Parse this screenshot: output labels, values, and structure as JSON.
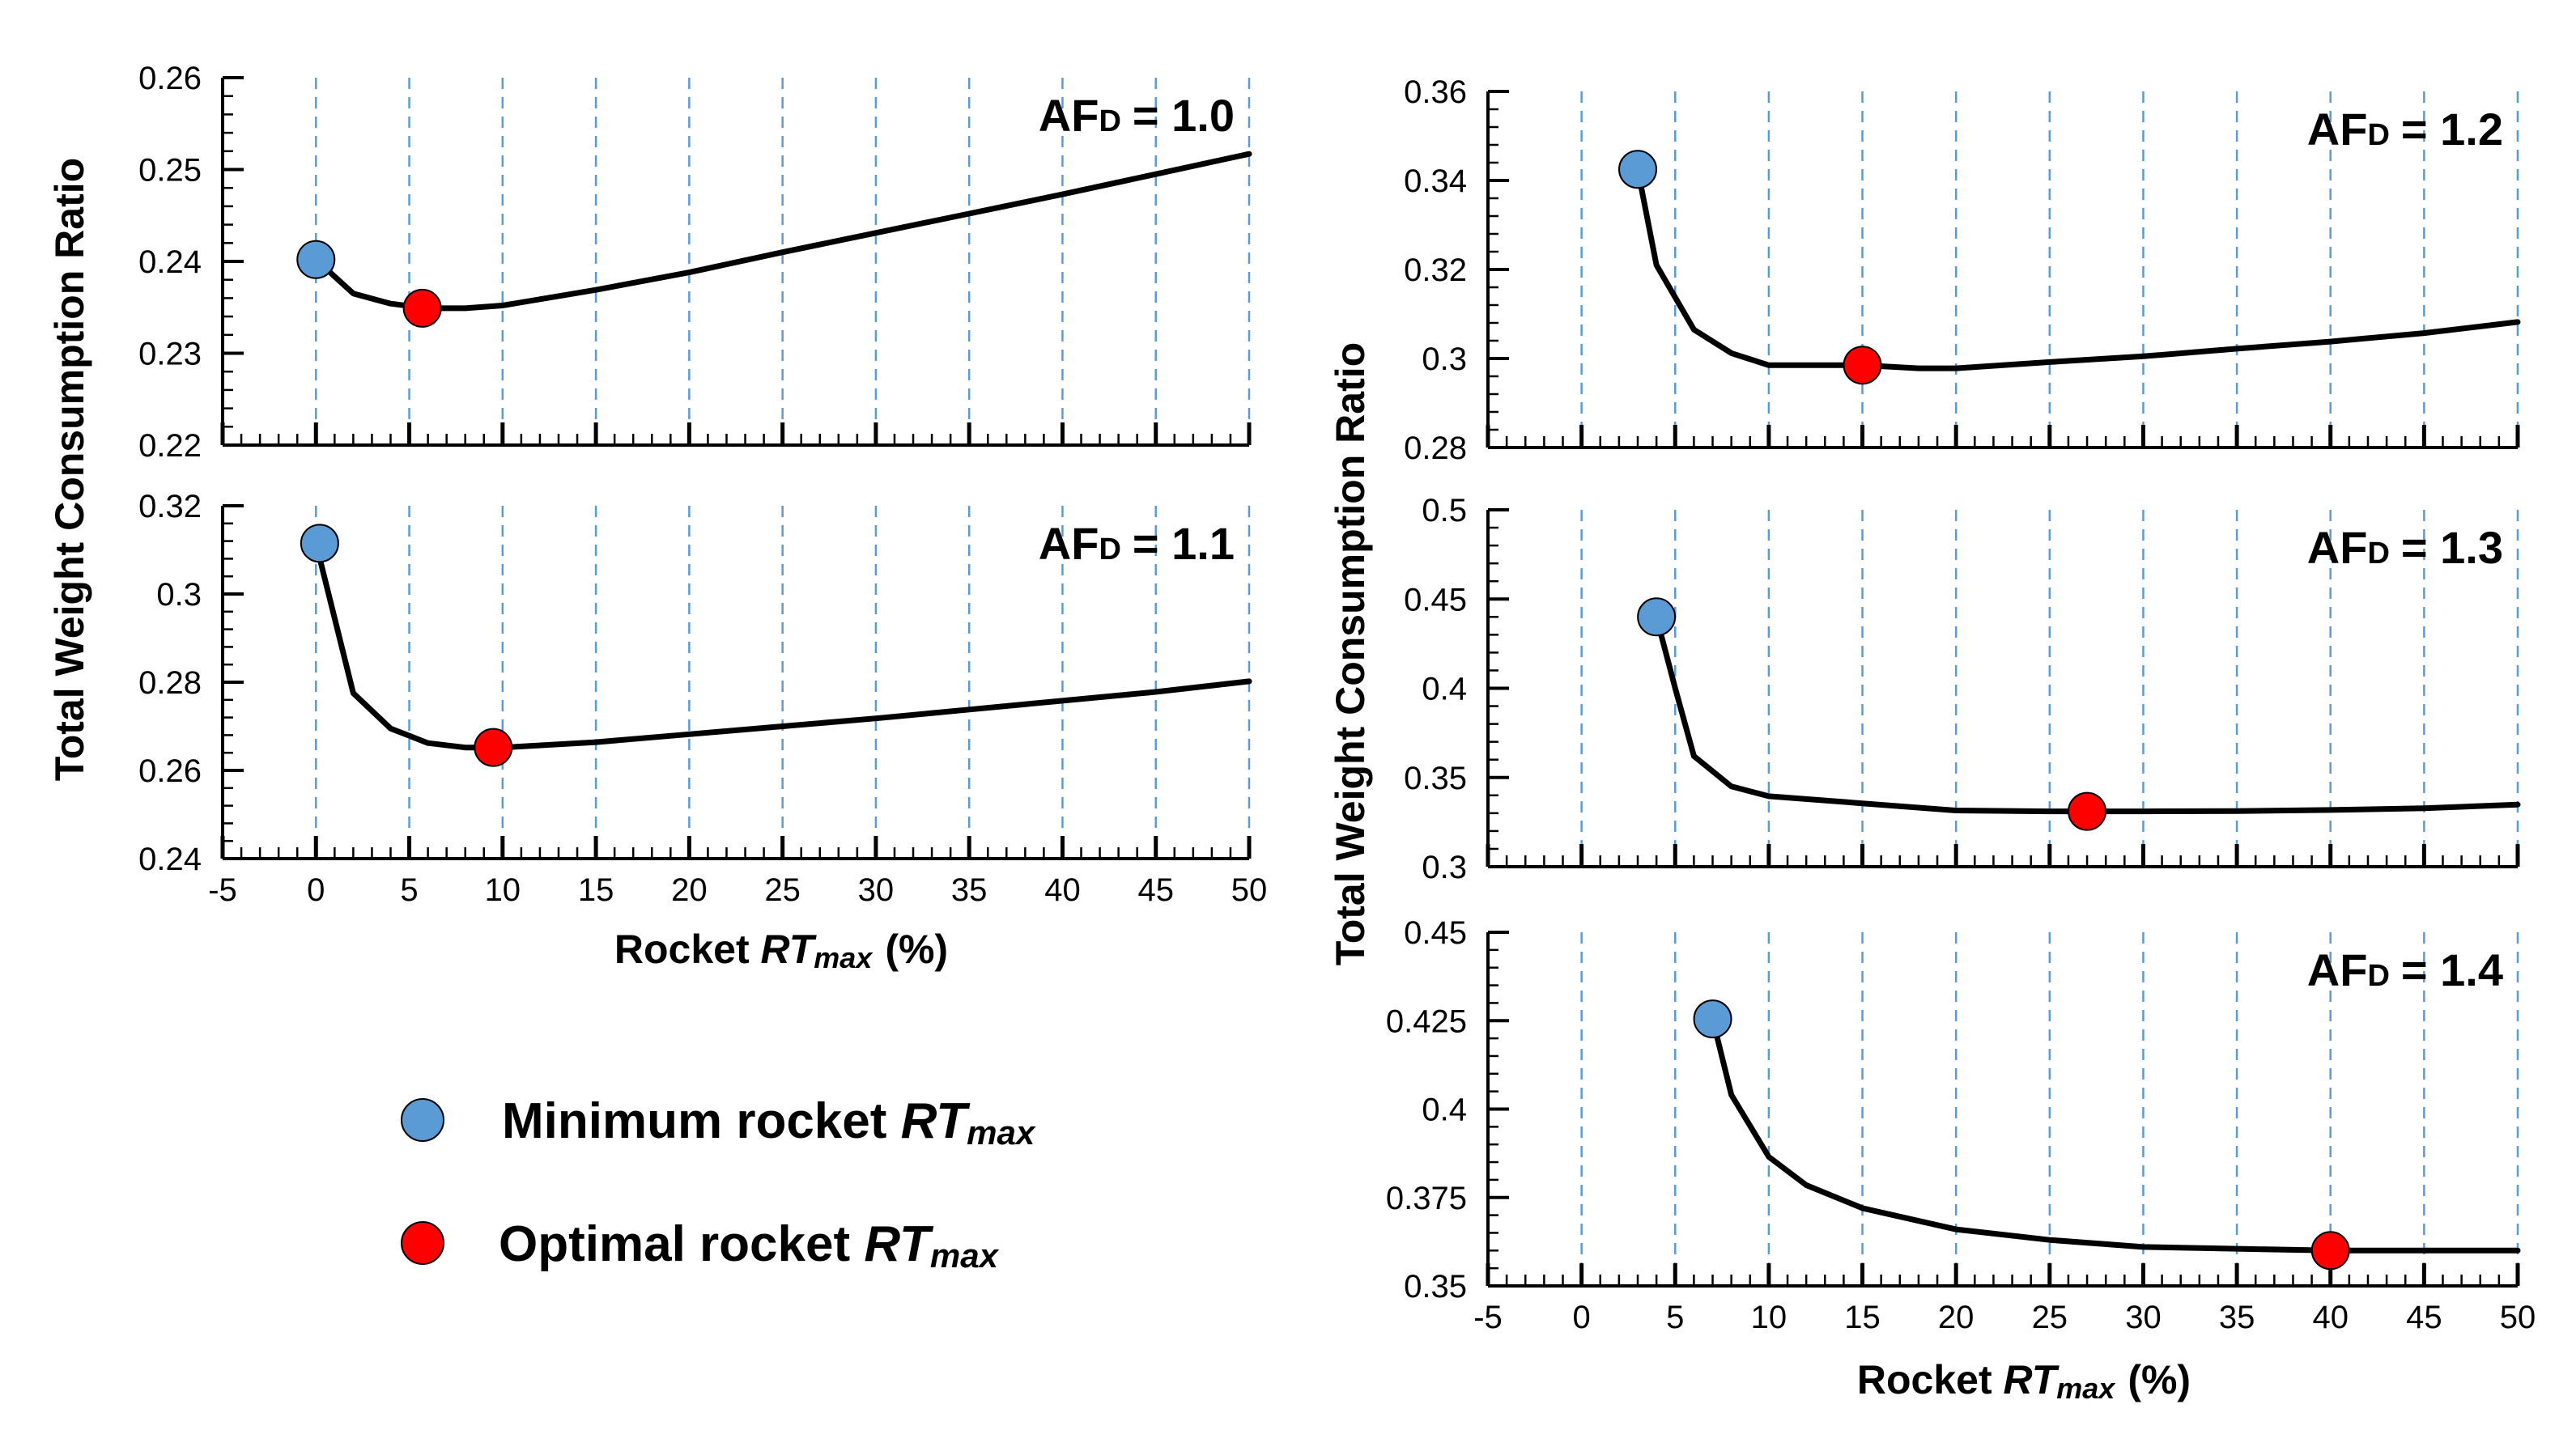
{
  "colors": {
    "line": "#000000",
    "grid": "#5b9bd5",
    "minimum_marker": "#5b9bd5",
    "optimal_marker": "#ff0000"
  },
  "legend": {
    "minimum_prefix": "Minimum rocket ",
    "optimal_prefix": "Optimal rocket ",
    "rt": "RT",
    "max": "max"
  },
  "axes": {
    "y_title": "Total Weight Consumption Ratio",
    "x_title_prefix": "Rocket ",
    "x_title_rt": "RT",
    "x_title_max": "max",
    "x_title_suffix": "(%)"
  },
  "chart_data": [
    {
      "type": "line",
      "label_main": "AF",
      "label_sub": "D",
      "label_value": "= 1.0",
      "x": [
        0,
        2,
        4,
        6,
        8,
        10,
        15,
        20,
        25,
        30,
        35,
        40,
        45,
        50
      ],
      "y": [
        0.2402,
        0.2365,
        0.2354,
        0.2349,
        0.2349,
        0.2352,
        0.2369,
        0.2388,
        0.241,
        0.2431,
        0.2452,
        0.2473,
        0.2495,
        0.2517
      ],
      "minimum": {
        "x": 0,
        "y": 0.2402
      },
      "optimal": {
        "x": 5.7,
        "y": 0.2349
      },
      "xlim": [
        -5,
        50
      ],
      "ylim": [
        0.22,
        0.26
      ],
      "yticks": [
        0.22,
        0.23,
        0.24,
        0.25,
        0.26
      ],
      "ytick_labels": [
        "0.22",
        "0.23",
        "0.24",
        "0.25",
        "0.26"
      ],
      "xticks": [
        -5,
        0,
        5,
        10,
        15,
        20,
        25,
        30,
        35,
        40,
        45,
        50
      ],
      "xtick_labels": []
    },
    {
      "type": "line",
      "label_main": "AF",
      "label_sub": "D",
      "label_value": "= 1.1",
      "x": [
        0,
        2,
        4,
        6,
        8,
        10,
        15,
        20,
        25,
        30,
        35,
        40,
        45,
        50
      ],
      "y": [
        0.3115,
        0.2775,
        0.2695,
        0.2662,
        0.2652,
        0.2652,
        0.2664,
        0.2682,
        0.27,
        0.2718,
        0.2738,
        0.2758,
        0.2778,
        0.2802
      ],
      "minimum": {
        "x": 0.2,
        "y": 0.3115
      },
      "optimal": {
        "x": 9.5,
        "y": 0.2652
      },
      "xlim": [
        -5,
        50
      ],
      "ylim": [
        0.24,
        0.32
      ],
      "yticks": [
        0.24,
        0.26,
        0.28,
        0.3,
        0.32
      ],
      "ytick_labels": [
        "0.24",
        "0.26",
        "0.28",
        "0.3",
        "0.32"
      ],
      "xticks": [
        -5,
        0,
        5,
        10,
        15,
        20,
        25,
        30,
        35,
        40,
        45,
        50
      ],
      "xtick_labels": [
        "-5",
        "0",
        "5",
        "10",
        "15",
        "20",
        "25",
        "30",
        "35",
        "40",
        "45",
        "50"
      ]
    },
    {
      "type": "line",
      "label_main": "AF",
      "label_sub": "D",
      "label_value": "= 1.2",
      "x": [
        3,
        4,
        6,
        8,
        10,
        15,
        18,
        20,
        25,
        30,
        35,
        40,
        45,
        50
      ],
      "y": [
        0.3425,
        0.321,
        0.3065,
        0.3012,
        0.2985,
        0.2985,
        0.2978,
        0.2978,
        0.2992,
        0.3005,
        0.3022,
        0.3038,
        0.3057,
        0.3082
      ],
      "minimum": {
        "x": 3,
        "y": 0.3425
      },
      "optimal": {
        "x": 15,
        "y": 0.2985
      },
      "xlim": [
        -5,
        50
      ],
      "ylim": [
        0.28,
        0.36
      ],
      "yticks": [
        0.28,
        0.3,
        0.32,
        0.34,
        0.36
      ],
      "ytick_labels": [
        "0.28",
        "0.3",
        "0.32",
        "0.34",
        "0.36"
      ],
      "xticks": [
        -5,
        0,
        5,
        10,
        15,
        20,
        25,
        30,
        35,
        40,
        45,
        50
      ],
      "xtick_labels": []
    },
    {
      "type": "line",
      "label_main": "AF",
      "label_sub": "D",
      "label_value": "= 1.3",
      "x": [
        4,
        5,
        6,
        8,
        10,
        15,
        20,
        25,
        27,
        30,
        35,
        40,
        45,
        50
      ],
      "y": [
        0.44,
        0.4,
        0.362,
        0.345,
        0.3395,
        0.3355,
        0.3315,
        0.331,
        0.331,
        0.331,
        0.3312,
        0.3318,
        0.3328,
        0.3348
      ],
      "minimum": {
        "x": 4,
        "y": 0.44
      },
      "optimal": {
        "x": 27,
        "y": 0.331
      },
      "xlim": [
        -5,
        50
      ],
      "ylim": [
        0.3,
        0.5
      ],
      "yticks": [
        0.3,
        0.35,
        0.4,
        0.45,
        0.5
      ],
      "ytick_labels": [
        "0.3",
        "0.35",
        "0.4",
        "0.45",
        "0.5"
      ],
      "xticks": [
        -5,
        0,
        5,
        10,
        15,
        20,
        25,
        30,
        35,
        40,
        45,
        50
      ],
      "xtick_labels": []
    },
    {
      "type": "line",
      "label_main": "AF",
      "label_sub": "D",
      "label_value": "= 1.4",
      "x": [
        7,
        8,
        10,
        12,
        15,
        20,
        25,
        30,
        35,
        40,
        45,
        50
      ],
      "y": [
        0.4255,
        0.404,
        0.3865,
        0.3785,
        0.372,
        0.366,
        0.363,
        0.361,
        0.3605,
        0.36,
        0.36,
        0.36
      ],
      "minimum": {
        "x": 7,
        "y": 0.4255
      },
      "optimal": {
        "x": 40,
        "y": 0.36
      },
      "xlim": [
        -5,
        50
      ],
      "ylim": [
        0.35,
        0.45
      ],
      "yticks": [
        0.35,
        0.375,
        0.4,
        0.425,
        0.45
      ],
      "ytick_labels": [
        "0.35",
        "0.375",
        "0.4",
        "0.425",
        "0.45"
      ],
      "xticks": [
        -5,
        0,
        5,
        10,
        15,
        20,
        25,
        30,
        35,
        40,
        45,
        50
      ],
      "xtick_labels": [
        "-5",
        "0",
        "5",
        "10",
        "15",
        "20",
        "25",
        "30",
        "35",
        "40",
        "45",
        "50"
      ]
    }
  ]
}
